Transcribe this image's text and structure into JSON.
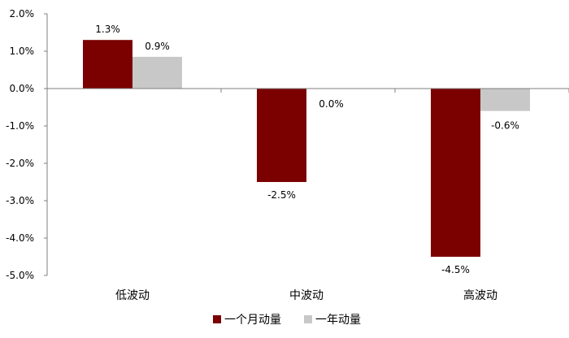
{
  "chart_data": {
    "type": "bar",
    "categories": [
      "低波动",
      "中波动",
      "高波动"
    ],
    "series": [
      {
        "name": "一个月动量",
        "color": "#7B0000",
        "values": [
          1.3,
          -2.5,
          -4.5
        ],
        "labels": [
          "1.3%",
          "-2.5%",
          "-4.5%"
        ]
      },
      {
        "name": "一年动量",
        "color": "#C8C8C8",
        "values": [
          0.85,
          0.0,
          -0.6
        ],
        "labels": [
          "0.9%",
          "0.0%",
          "-0.6%"
        ]
      }
    ],
    "y_ticks": [
      2.0,
      1.0,
      0.0,
      -1.0,
      -2.0,
      -3.0,
      -4.0,
      -5.0
    ],
    "y_tick_labels": [
      "2.0%",
      "1.0%",
      "0.0%",
      "-1.0%",
      "-2.0%",
      "-3.0%",
      "-4.0%",
      "-5.0%"
    ],
    "ylim": [
      -5.0,
      2.0
    ],
    "grid": false,
    "legend_position": "bottom-center",
    "title": "",
    "xlabel": "",
    "ylabel": ""
  }
}
